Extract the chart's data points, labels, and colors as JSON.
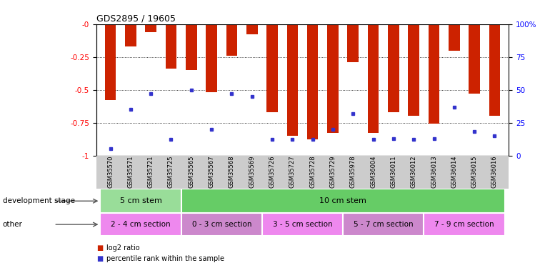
{
  "title": "GDS2895 / 19605",
  "samples": [
    "GSM35570",
    "GSM35571",
    "GSM35721",
    "GSM35725",
    "GSM35565",
    "GSM35567",
    "GSM35568",
    "GSM35569",
    "GSM35726",
    "GSM35727",
    "GSM35728",
    "GSM35729",
    "GSM35978",
    "GSM36004",
    "GSM36011",
    "GSM36012",
    "GSM36013",
    "GSM36014",
    "GSM36015",
    "GSM36016"
  ],
  "log2_ratio": [
    -0.58,
    -0.17,
    -0.06,
    -0.34,
    -0.35,
    -0.52,
    -0.24,
    -0.08,
    -0.67,
    -0.85,
    -0.88,
    -0.83,
    -0.29,
    -0.83,
    -0.67,
    -0.7,
    -0.76,
    -0.2,
    -0.53,
    -0.7
  ],
  "percentile": [
    5,
    35,
    47,
    12,
    50,
    20,
    47,
    45,
    12,
    12,
    12,
    20,
    32,
    12,
    13,
    12,
    13,
    37,
    18,
    15
  ],
  "ylim_left": [
    -1,
    0
  ],
  "yticks_left": [
    0,
    -0.25,
    -0.5,
    -0.75,
    -1
  ],
  "ytick_labels_left": [
    "-0",
    "-0.25",
    "-0.5",
    "-0.75",
    "-1"
  ],
  "yticks_right": [
    0,
    25,
    50,
    75,
    100
  ],
  "ytick_labels_right": [
    "0",
    "25",
    "50",
    "75",
    "100%"
  ],
  "bar_color": "#cc2200",
  "dot_color": "#3333cc",
  "dev_stage_groups": [
    {
      "label": "5 cm stem",
      "start": 0,
      "end": 4,
      "color": "#99dd99"
    },
    {
      "label": "10 cm stem",
      "start": 4,
      "end": 20,
      "color": "#66cc66"
    }
  ],
  "other_groups": [
    {
      "label": "2 - 4 cm section",
      "start": 0,
      "end": 4,
      "color": "#ee88ee"
    },
    {
      "label": "0 - 3 cm section",
      "start": 4,
      "end": 8,
      "color": "#cc88cc"
    },
    {
      "label": "3 - 5 cm section",
      "start": 8,
      "end": 12,
      "color": "#ee88ee"
    },
    {
      "label": "5 - 7 cm section",
      "start": 12,
      "end": 16,
      "color": "#cc88cc"
    },
    {
      "label": "7 - 9 cm section",
      "start": 16,
      "end": 20,
      "color": "#ee88ee"
    }
  ],
  "dev_stage_label": "development stage",
  "other_label": "other",
  "legend_log2": "log2 ratio",
  "legend_percentile": "percentile rank within the sample"
}
